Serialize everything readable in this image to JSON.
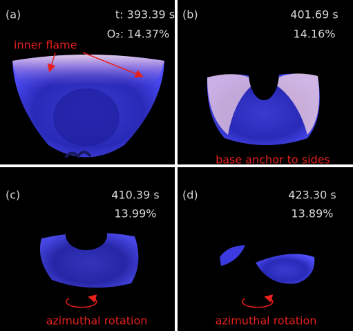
{
  "panels": [
    {
      "label": "(a)",
      "time": "t: 393.39 s",
      "o2": "O₂: 14.37%",
      "annotation": "inner flame"
    },
    {
      "label": "(b)",
      "time": "401.69 s",
      "o2": "14.16%",
      "annotation": "base anchor to sides"
    },
    {
      "label": "(c)",
      "time": "410.39 s",
      "o2": "13.99%",
      "annotation": "azimuthal rotation"
    },
    {
      "label": "(d)",
      "time": "423.30 s",
      "o2": "13.89%",
      "annotation": "azimuthal rotation"
    }
  ]
}
